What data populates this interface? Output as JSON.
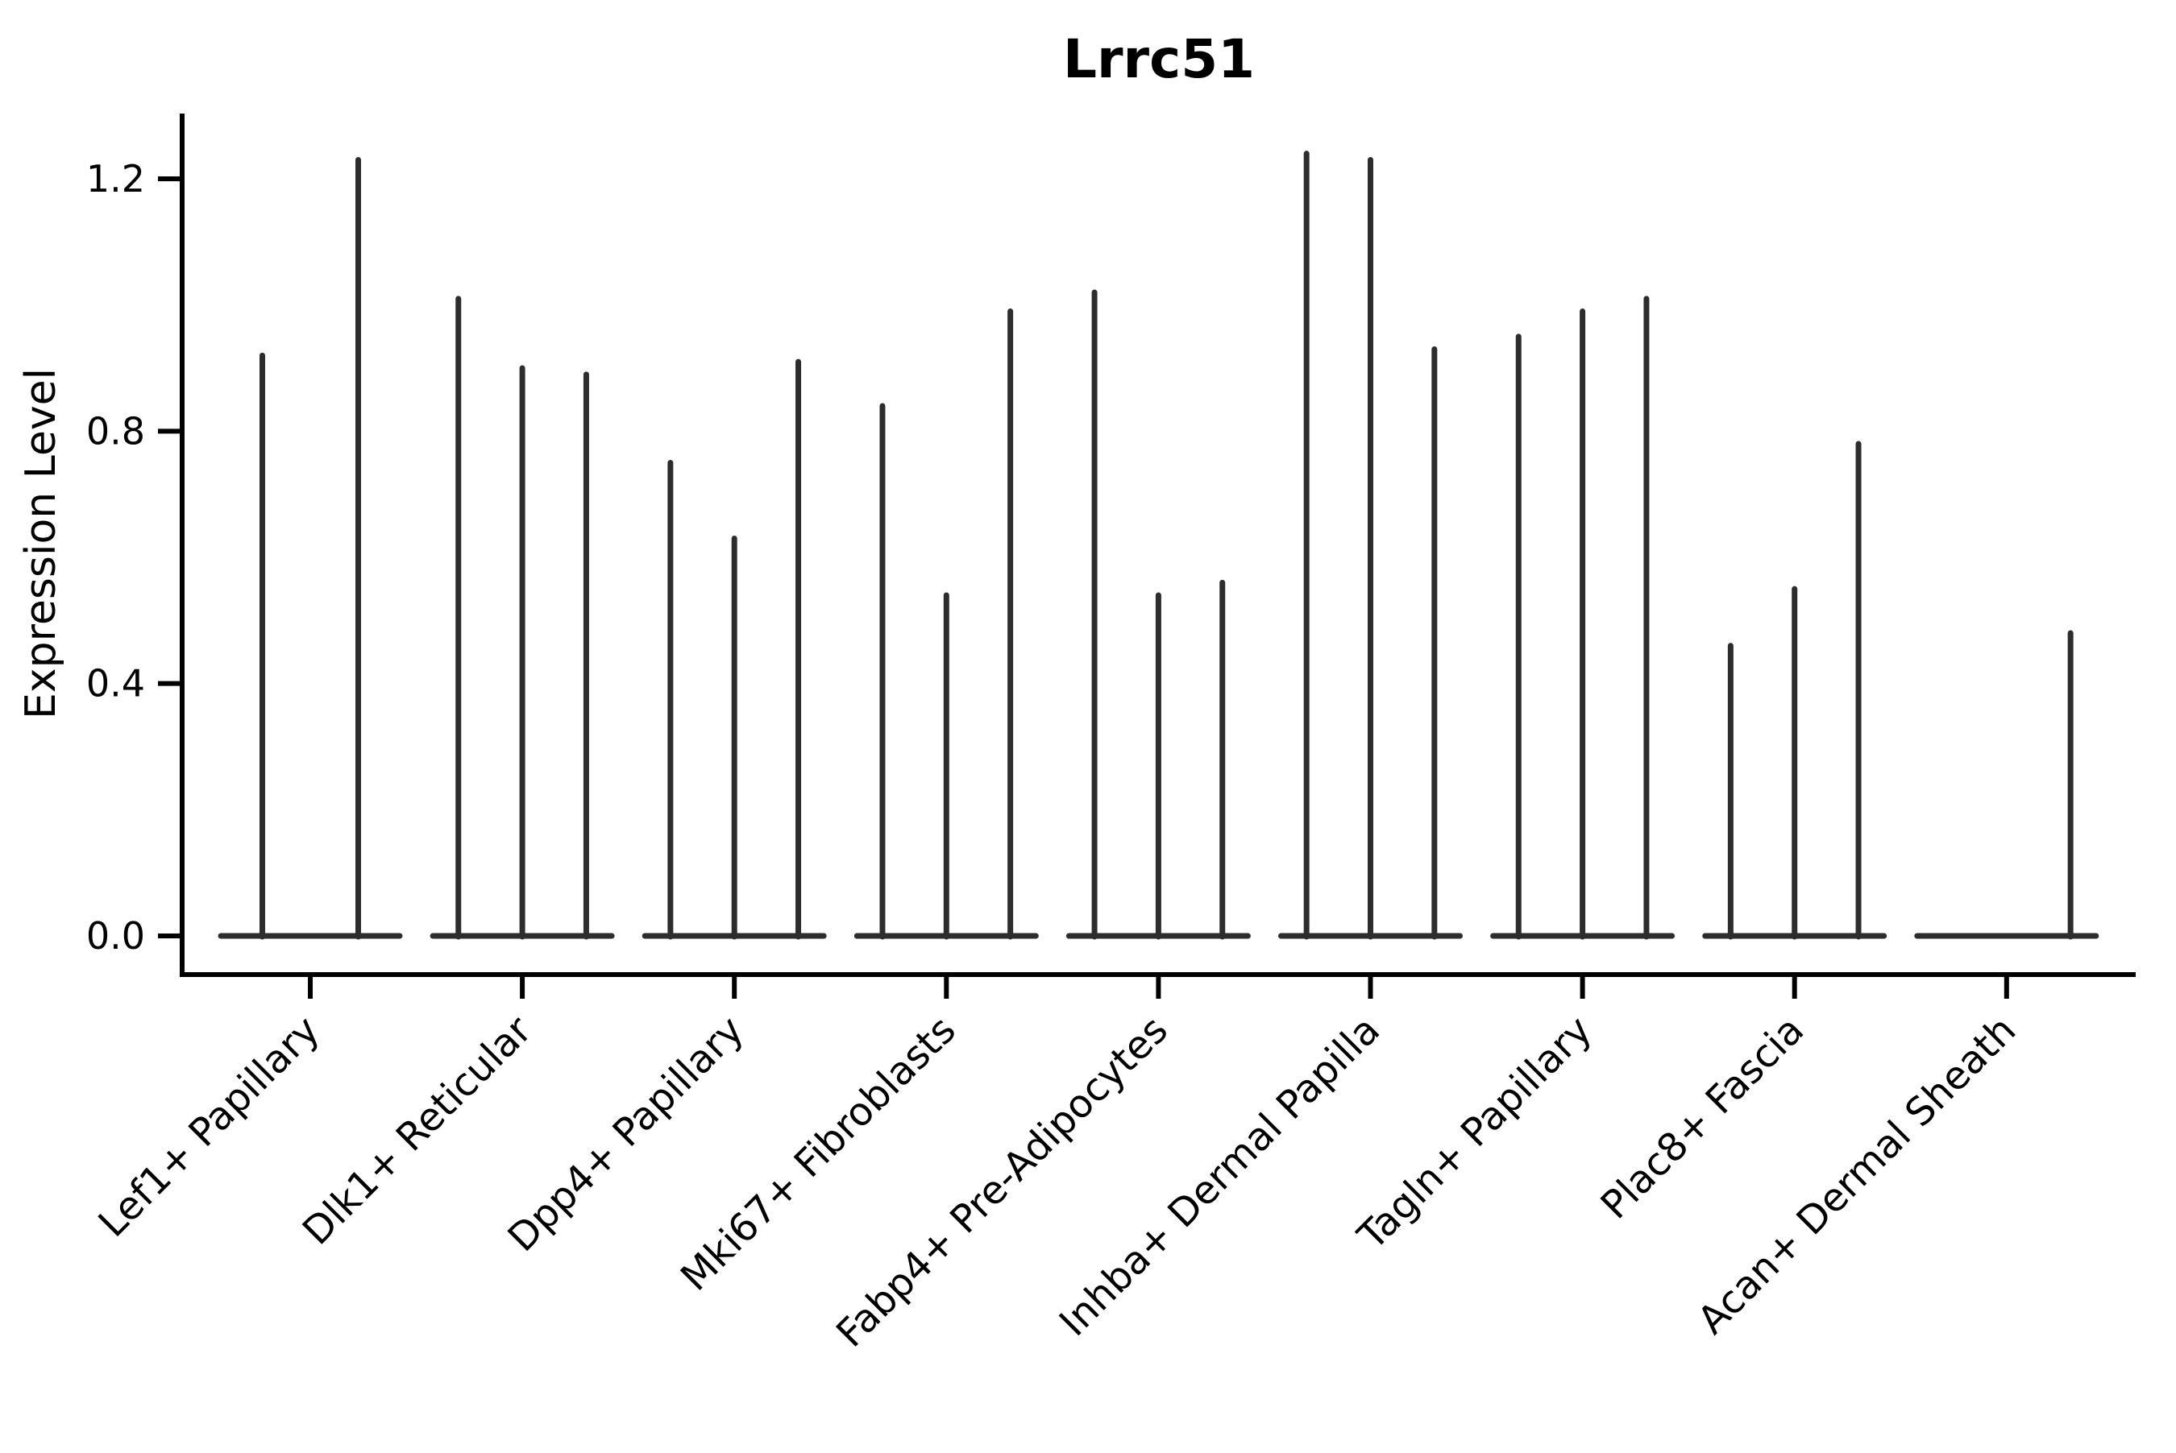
{
  "chart_data": {
    "type": "violin",
    "title": "Lrrc51",
    "ylabel": "Expression Level",
    "xlabel": "",
    "categories": [
      "Lef1+ Papillary",
      "Dlk1+ Reticular",
      "Dpp4+ Papillary",
      "Mki67+ Fibroblasts",
      "Fabp4+ Pre-Adipocytes",
      "Inhba+ Dermal Papilla",
      "Tagln+ Papillary",
      "Plac8+ Fascia",
      "Acan+ Dermal Sheath"
    ],
    "series_note": "max expression height of each thin violin spike per category, in y-axis units",
    "violin_heights": [
      [
        0.92,
        1.23
      ],
      [
        1.01,
        0.9,
        0.89
      ],
      [
        0.75,
        0.63,
        0.91
      ],
      [
        0.84,
        0.54,
        0.99
      ],
      [
        1.02,
        0.54,
        0.56
      ],
      [
        1.24,
        1.23,
        0.93
      ],
      [
        0.95,
        0.99,
        1.01
      ],
      [
        0.46,
        0.55,
        0.78
      ],
      [
        0.0,
        0.0,
        0.48
      ]
    ],
    "yticks": [
      0.0,
      0.4,
      0.8,
      1.2
    ],
    "ylim": [
      -0.06,
      1.3
    ],
    "grid": false,
    "legend": null,
    "xtick_rotation_deg": 45,
    "ink_color": "#2d2d2d",
    "axis_color": "#000000"
  }
}
